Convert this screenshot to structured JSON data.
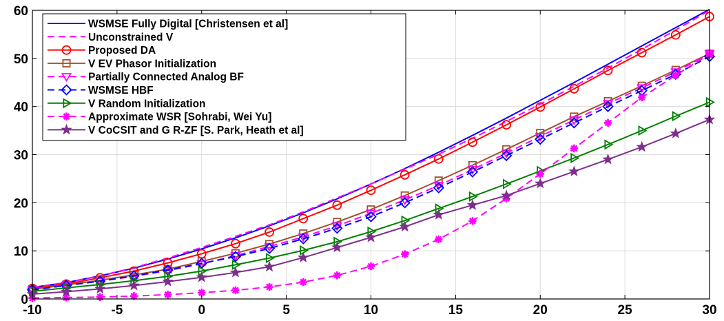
{
  "chart_data": {
    "type": "line",
    "title": "",
    "xlabel": "",
    "ylabel": "",
    "xlim": [
      -10,
      30
    ],
    "ylim": [
      0,
      60
    ],
    "x_ticks": [
      -10,
      -5,
      0,
      5,
      10,
      15,
      20,
      25,
      30
    ],
    "y_ticks": [
      0,
      10,
      20,
      30,
      40,
      50,
      60
    ],
    "grid": "on",
    "legend_position": "top-left",
    "series": [
      {
        "name": "WSMSE Fully Digital [Christensen et al]",
        "color": "#0000ff",
        "dash": "solid",
        "marker": "none",
        "x": [
          -10,
          -8,
          -6,
          -4,
          -2,
          0,
          2,
          4,
          6,
          8,
          10,
          12,
          14,
          16,
          18,
          20,
          22,
          24,
          26,
          28,
          30
        ],
        "values": [
          2.4,
          3.4,
          4.8,
          6.4,
          8.3,
          10.4,
          12.7,
          15.2,
          17.9,
          20.8,
          23.9,
          27.1,
          30.5,
          34.0,
          37.6,
          41.3,
          45.0,
          48.8,
          52.6,
          56.4,
          60.2
        ]
      },
      {
        "name": "Unconstrained V",
        "color": "#ff00ff",
        "dash": "dashed",
        "marker": "none",
        "x": [
          -10,
          -8,
          -6,
          -4,
          -2,
          0,
          2,
          4,
          6,
          8,
          10,
          12,
          14,
          16,
          18,
          20,
          22,
          24,
          26,
          28,
          30
        ],
        "values": [
          2.4,
          3.4,
          4.8,
          6.5,
          8.5,
          10.7,
          13.0,
          15.4,
          18.1,
          21.0,
          23.9,
          27.0,
          30.1,
          33.4,
          36.9,
          40.5,
          44.2,
          48.0,
          51.9,
          55.9,
          60.0
        ]
      },
      {
        "name": "Proposed DA",
        "color": "#ff0000",
        "dash": "solid",
        "marker": "circle",
        "x": [
          -10,
          -8,
          -6,
          -4,
          -2,
          0,
          2,
          4,
          6,
          8,
          10,
          12,
          14,
          16,
          18,
          20,
          22,
          24,
          26,
          28,
          30
        ],
        "values": [
          2.2,
          3.1,
          4.4,
          5.8,
          7.5,
          9.4,
          11.5,
          13.9,
          16.7,
          19.5,
          22.6,
          25.8,
          29.1,
          32.6,
          36.2,
          39.9,
          43.7,
          47.5,
          51.2,
          54.9,
          58.7
        ]
      },
      {
        "name": "V EV Phasor Initialization",
        "color": "#a0522d",
        "dash": "solid",
        "marker": "square",
        "x": [
          -10,
          -8,
          -6,
          -4,
          -2,
          0,
          2,
          4,
          6,
          8,
          10,
          12,
          14,
          16,
          18,
          20,
          22,
          24,
          26,
          28,
          30
        ],
        "values": [
          2.0,
          2.9,
          3.9,
          5.0,
          6.2,
          7.8,
          9.5,
          11.4,
          13.6,
          16.0,
          18.6,
          21.5,
          24.6,
          27.8,
          31.1,
          34.5,
          37.9,
          41.1,
          44.3,
          47.6,
          51.0
        ]
      },
      {
        "name": "Partially Connected Analog BF",
        "color": "#ff00ff",
        "dash": "dashed",
        "marker": "triangle-down",
        "x": [
          -10,
          -8,
          -6,
          -4,
          -2,
          0,
          2,
          4,
          6,
          8,
          10,
          12,
          14,
          16,
          18,
          20,
          22,
          24,
          26,
          28,
          30
        ],
        "values": [
          1.9,
          2.8,
          3.7,
          4.7,
          5.9,
          7.3,
          9.0,
          10.9,
          12.9,
          15.2,
          17.8,
          20.6,
          23.6,
          26.9,
          30.3,
          33.8,
          37.2,
          40.6,
          43.9,
          47.2,
          51.0
        ]
      },
      {
        "name": "WSMSE HBF",
        "color": "#0000ff",
        "dash": "dashed",
        "marker": "diamond",
        "x": [
          -10,
          -8,
          -6,
          -4,
          -2,
          0,
          2,
          4,
          6,
          8,
          10,
          12,
          14,
          16,
          18,
          20,
          22,
          24,
          26,
          28,
          30
        ],
        "values": [
          1.9,
          2.8,
          3.7,
          4.8,
          6.0,
          7.4,
          8.8,
          10.5,
          12.5,
          14.7,
          17.1,
          20.0,
          23.1,
          26.4,
          29.8,
          33.2,
          36.6,
          40.0,
          43.3,
          46.7,
          50.4
        ]
      },
      {
        "name": "V Random Initialization",
        "color": "#008000",
        "dash": "solid",
        "marker": "triangle-right",
        "x": [
          -10,
          -8,
          -6,
          -4,
          -2,
          0,
          2,
          4,
          6,
          8,
          10,
          12,
          14,
          16,
          18,
          20,
          22,
          24,
          26,
          28,
          30
        ],
        "values": [
          1.6,
          2.3,
          3.0,
          3.8,
          4.7,
          5.8,
          7.1,
          8.5,
          10.1,
          11.9,
          14.0,
          16.3,
          18.8,
          21.3,
          23.9,
          26.6,
          29.3,
          32.1,
          35.0,
          38.0,
          40.9
        ]
      },
      {
        "name": "Approximate WSR [Sohrabi, Wei Yu]",
        "color": "#ff00ff",
        "dash": "dashed",
        "marker": "asterisk",
        "x": [
          -10,
          -8,
          -6,
          -4,
          -2,
          0,
          2,
          4,
          6,
          8,
          10,
          12,
          14,
          16,
          18,
          20,
          22,
          24,
          26,
          28,
          30
        ],
        "values": [
          0.2,
          0.3,
          0.4,
          0.6,
          0.9,
          1.3,
          1.8,
          2.5,
          3.5,
          4.9,
          6.8,
          9.3,
          12.4,
          16.2,
          20.9,
          26.0,
          31.3,
          36.6,
          41.9,
          46.5,
          50.9
        ]
      },
      {
        "name": "V CoCSIT and G R-ZF [S. Park, Heath et al]",
        "color": "#7e2f8e",
        "dash": "solid",
        "marker": "star",
        "x": [
          -10,
          -8,
          -6,
          -4,
          -2,
          0,
          2,
          4,
          6,
          8,
          10,
          12,
          14,
          16,
          18,
          20,
          22,
          24,
          26,
          28,
          30
        ],
        "values": [
          1.0,
          1.5,
          2.1,
          2.8,
          3.6,
          4.5,
          5.5,
          6.7,
          8.6,
          10.7,
          12.8,
          15.0,
          17.5,
          19.5,
          21.5,
          24.0,
          26.5,
          29.0,
          31.6,
          34.4,
          37.3
        ]
      }
    ]
  }
}
